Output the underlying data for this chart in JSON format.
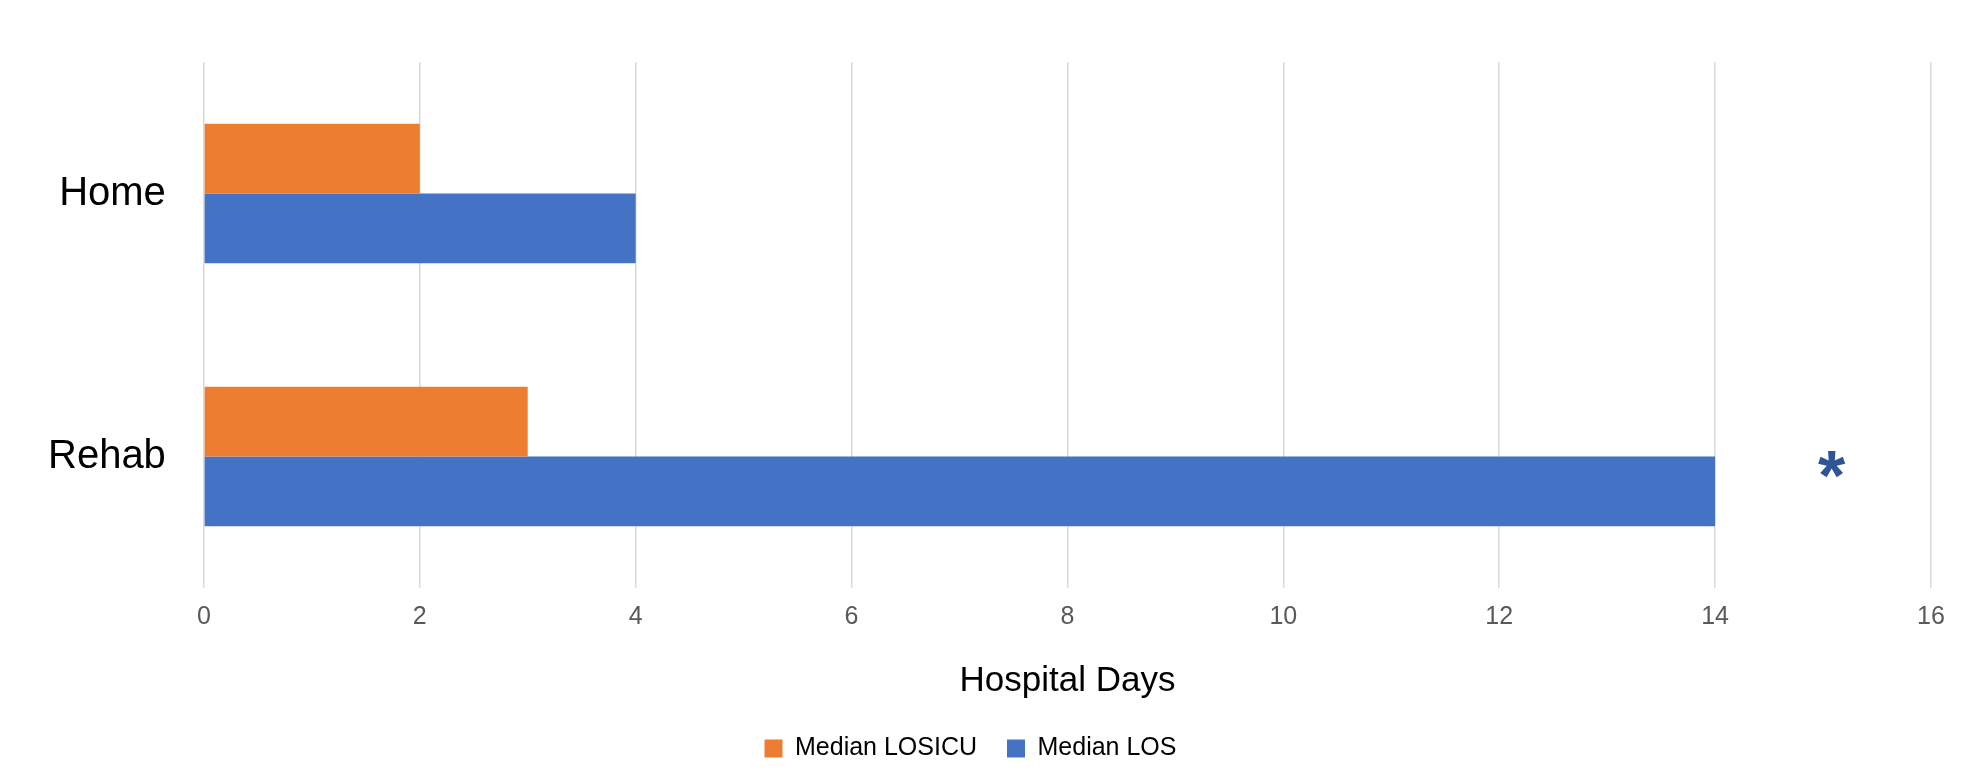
{
  "chart_data": {
    "type": "bar",
    "orientation": "horizontal",
    "xlabel": "Hospital Days",
    "categories": [
      "Home",
      "Rehab"
    ],
    "series": [
      {
        "name": "Median LOSICU",
        "color": "#ed7d31",
        "values": [
          2,
          3
        ]
      },
      {
        "name": "Median LOS",
        "color": "#4472c4",
        "values": [
          4,
          14
        ]
      }
    ],
    "xlim": [
      0,
      16
    ],
    "xticks": [
      0,
      2,
      4,
      6,
      8,
      10,
      12,
      14,
      16
    ],
    "grid": "x",
    "legend": "bottom",
    "annotations": [
      "*"
    ]
  }
}
